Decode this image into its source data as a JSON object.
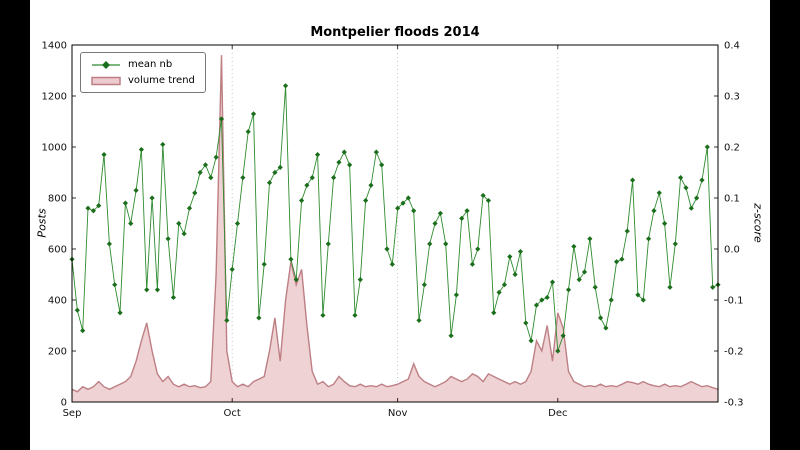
{
  "chart_data": {
    "type": "line",
    "title": "Montpelier floods 2014",
    "x_tick_labels": [
      "Sep",
      "Oct",
      "Nov",
      "Dec"
    ],
    "x_tick_days": [
      0,
      30,
      61,
      91
    ],
    "x_range_days": [
      0,
      121
    ],
    "left_axis": {
      "label": "Posts",
      "range": [
        0,
        1400
      ],
      "tick_step": 200
    },
    "right_axis": {
      "label": "z-score",
      "range": [
        -0.3,
        0.4
      ],
      "tick_step": 0.1
    },
    "grid": "vertical-dotted-at-month-ticks",
    "legend_position": "upper-left",
    "series": [
      {
        "name": "mean nb",
        "axis": "left",
        "style": "line-with-diamond-markers",
        "color": "#2e8b2e",
        "marker_color": "#1b6e1b",
        "values": [
          560,
          360,
          280,
          760,
          750,
          770,
          970,
          620,
          460,
          350,
          780,
          700,
          830,
          990,
          440,
          800,
          440,
          1010,
          640,
          410,
          700,
          660,
          760,
          820,
          900,
          930,
          880,
          960,
          1110,
          320,
          520,
          700,
          880,
          1060,
          1130,
          330,
          540,
          860,
          900,
          920,
          1240,
          560,
          480,
          790,
          850,
          880,
          970,
          340,
          620,
          880,
          940,
          980,
          930,
          340,
          480,
          790,
          850,
          980,
          930,
          600,
          540,
          760,
          780,
          800,
          750,
          320,
          460,
          620,
          700,
          740,
          620,
          260,
          420,
          720,
          750,
          540,
          600,
          810,
          790,
          350,
          430,
          460,
          570,
          500,
          590,
          310,
          240,
          380,
          400,
          410,
          470,
          200,
          260,
          440,
          610,
          480,
          510,
          640,
          450,
          330,
          290,
          400,
          550,
          560,
          670,
          870,
          420,
          400,
          640,
          750,
          820,
          700,
          450,
          620,
          880,
          840,
          760,
          800,
          870,
          1000,
          450,
          460
        ]
      },
      {
        "name": "volume trend",
        "axis": "right",
        "style": "filled-area",
        "line_color": "#bd7f84",
        "fill_color": "#eccacd",
        "values": [
          -0.275,
          -0.28,
          -0.27,
          -0.275,
          -0.27,
          -0.26,
          -0.27,
          -0.275,
          -0.27,
          -0.265,
          -0.26,
          -0.25,
          -0.22,
          -0.18,
          -0.145,
          -0.2,
          -0.245,
          -0.26,
          -0.25,
          -0.265,
          -0.27,
          -0.265,
          -0.27,
          -0.268,
          -0.272,
          -0.27,
          -0.26,
          -0.05,
          0.38,
          -0.2,
          -0.26,
          -0.27,
          -0.265,
          -0.27,
          -0.26,
          -0.255,
          -0.25,
          -0.2,
          -0.135,
          -0.22,
          -0.1,
          -0.025,
          -0.07,
          -0.04,
          -0.15,
          -0.24,
          -0.265,
          -0.26,
          -0.27,
          -0.265,
          -0.25,
          -0.26,
          -0.268,
          -0.27,
          -0.265,
          -0.27,
          -0.268,
          -0.27,
          -0.265,
          -0.27,
          -0.268,
          -0.265,
          -0.26,
          -0.255,
          -0.225,
          -0.25,
          -0.26,
          -0.265,
          -0.27,
          -0.265,
          -0.26,
          -0.25,
          -0.255,
          -0.26,
          -0.255,
          -0.245,
          -0.25,
          -0.26,
          -0.245,
          -0.25,
          -0.255,
          -0.26,
          -0.265,
          -0.26,
          -0.265,
          -0.26,
          -0.24,
          -0.18,
          -0.2,
          -0.15,
          -0.22,
          -0.125,
          -0.155,
          -0.24,
          -0.26,
          -0.265,
          -0.27,
          -0.268,
          -0.27,
          -0.265,
          -0.27,
          -0.268,
          -0.27,
          -0.265,
          -0.26,
          -0.262,
          -0.265,
          -0.26,
          -0.265,
          -0.268,
          -0.27,
          -0.265,
          -0.27,
          -0.268,
          -0.27,
          -0.265,
          -0.26,
          -0.265,
          -0.27,
          -0.268,
          -0.272,
          -0.275
        ]
      }
    ]
  }
}
